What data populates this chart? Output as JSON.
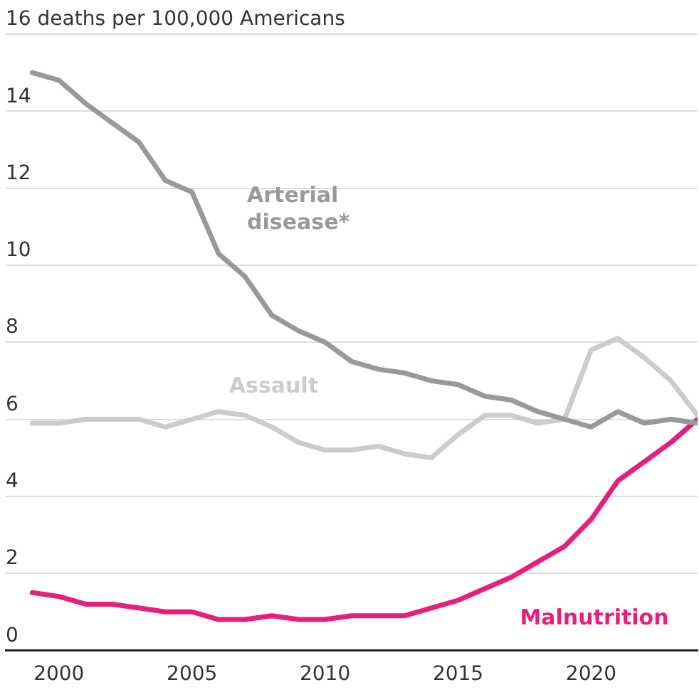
{
  "chart_data": {
    "type": "line",
    "x": [
      1999,
      2000,
      2001,
      2002,
      2003,
      2004,
      2005,
      2006,
      2007,
      2008,
      2009,
      2010,
      2011,
      2012,
      2013,
      2014,
      2015,
      2016,
      2017,
      2018,
      2019,
      2020,
      2021,
      2022,
      2023,
      2024
    ],
    "series": [
      {
        "name": "Arterial disease*",
        "color": "#999999",
        "values": [
          15.0,
          14.8,
          14.2,
          13.7,
          13.2,
          12.2,
          11.9,
          10.3,
          9.7,
          8.7,
          8.3,
          8.0,
          7.5,
          7.3,
          7.2,
          7.0,
          6.9,
          6.6,
          6.5,
          6.2,
          6.0,
          5.8,
          6.2,
          5.9,
          6.0,
          5.9
        ]
      },
      {
        "name": "Assault",
        "color": "#cccccc",
        "values": [
          5.9,
          5.9,
          6.0,
          6.0,
          6.0,
          5.8,
          6.0,
          6.2,
          6.1,
          5.8,
          5.4,
          5.2,
          5.2,
          5.3,
          5.1,
          5.0,
          5.6,
          6.1,
          6.1,
          5.9,
          6.0,
          7.8,
          8.1,
          7.6,
          7.0,
          6.1
        ]
      },
      {
        "name": "Malnutrition",
        "color": "#e6207a",
        "values": [
          1.5,
          1.4,
          1.2,
          1.2,
          1.1,
          1.0,
          1.0,
          0.8,
          0.8,
          0.9,
          0.8,
          0.8,
          0.9,
          0.9,
          0.9,
          1.1,
          1.3,
          1.6,
          1.9,
          2.3,
          2.7,
          3.4,
          4.4,
          4.9,
          5.4,
          6.0
        ]
      }
    ],
    "xlim": [
      1998,
      2024
    ],
    "xticks": [
      2000,
      2005,
      2010,
      2015,
      2020
    ],
    "ylim": [
      0,
      16
    ],
    "yticks": [
      0,
      2,
      4,
      6,
      8,
      10,
      12,
      14,
      {
        "value": 16,
        "label": "16 deaths per 100,000 Americans"
      }
    ],
    "grid": "y",
    "legend": false,
    "marker": "none",
    "line_style": "solid"
  }
}
